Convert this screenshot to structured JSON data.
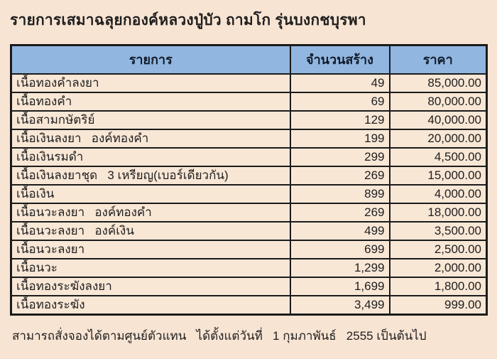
{
  "title": "รายการเสมาฉลุยกองค์หลวงปู่บัว ถามโก รุ่นบงกชบุรพา",
  "table": {
    "headers": [
      "รายการ",
      "จำนวนสร้าง",
      "ราคา"
    ],
    "rows": [
      {
        "item": "เนื้อทองคำลงยา",
        "qty": "49",
        "price": "85,000.00"
      },
      {
        "item": "เนื้อทองคำ",
        "qty": "69",
        "price": "80,000.00"
      },
      {
        "item": "เนื้อสามกษัตริย์",
        "qty": "129",
        "price": "40,000.00"
      },
      {
        "item": "เนื้อเงินลงยา   องค์ทองคำ",
        "qty": "199",
        "price": "20,000.00"
      },
      {
        "item": "เนื้อเงินรมดำ",
        "qty": "299",
        "price": "4,500.00"
      },
      {
        "item": "เนื้อเงินลงยาชุด   3 เหรียญ(เบอร์เดียวกัน)",
        "qty": "269",
        "price": "15,000.00"
      },
      {
        "item": "เนื้อเงิน",
        "qty": "899",
        "price": "4,000.00"
      },
      {
        "item": "เนื้อนวะลงยา   องค์ทองคำ",
        "qty": "269",
        "price": "18,000.00"
      },
      {
        "item": "เนื้อนวะลงยา   องค์เงิน",
        "qty": "499",
        "price": "3,500.00"
      },
      {
        "item": "เนื้อนวะลงยา",
        "qty": "699",
        "price": "2,500.00"
      },
      {
        "item": "เนื้อนวะ",
        "qty": "1,299",
        "price": "2,000.00"
      },
      {
        "item": "เนื้อทองระฆังลงยา",
        "qty": "1,699",
        "price": "1,800.00"
      },
      {
        "item": "เนื้อทองระฆัง",
        "qty": "3,499",
        "price": "999.00"
      }
    ]
  },
  "footer": "สามารถสั่งจองได้ตามศูนย์ตัวแทน   ได้ตั้งแต่วันที่   1 กุมภาพันธ์   2555 เป็นต้นไป",
  "colors": {
    "page_bg": "#f8e4d3",
    "cell_bg": "#f9e7d6",
    "header_bg": "#91b6e0",
    "header_text": "#121c2b",
    "border": "#1b1b1b",
    "text": "#1e1e1e"
  }
}
